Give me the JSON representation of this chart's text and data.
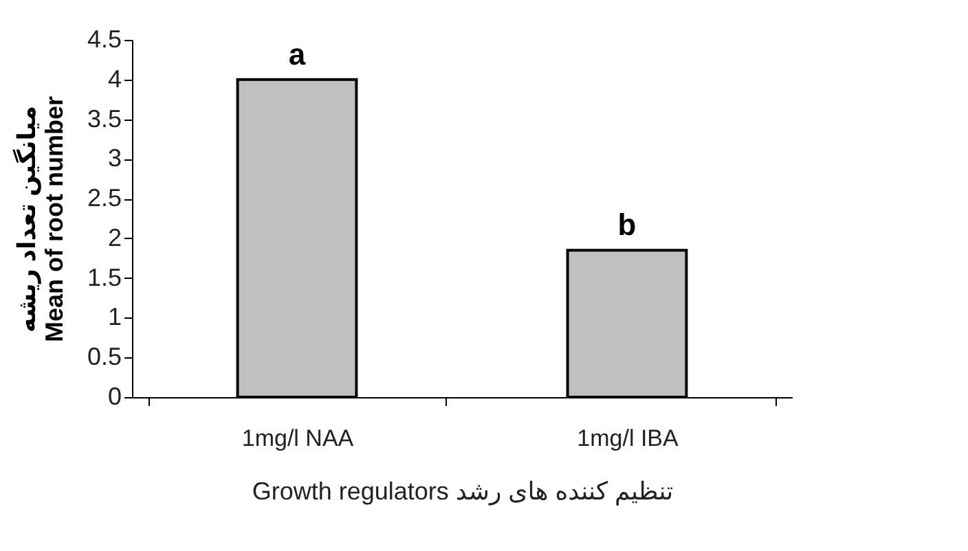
{
  "chart_data": {
    "type": "bar",
    "xlabel": "Growth regulators   تنظیم کننده های رشد",
    "ylabel": "میانگین تعداد ریشه\nMean of root number",
    "categories": [
      "1mg/l NAA",
      "1mg/l IBA"
    ],
    "values": [
      4.0,
      1.85
    ],
    "color": "#c0c0c0",
    "ylim": [
      0,
      4.5
    ],
    "yticks": [
      0,
      0.5,
      1,
      1.5,
      2,
      2.5,
      3,
      3.5,
      4,
      4.5
    ],
    "annotations": [
      {
        "text": "a",
        "x": "1mg/l NAA",
        "y": 4.0
      },
      {
        "text": "b",
        "x": "1mg/l IBA",
        "y": 1.85
      }
    ]
  }
}
